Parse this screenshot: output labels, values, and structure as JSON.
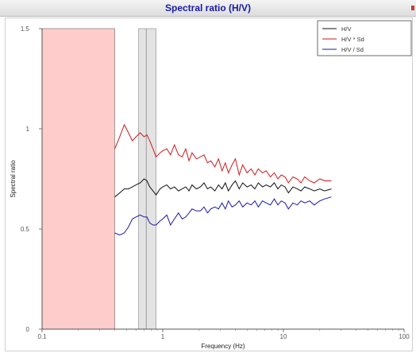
{
  "window": {
    "title": "Spectral ratio (H/V)"
  },
  "chart_data": {
    "type": "line",
    "title": "",
    "xlabel": "Frequency (Hz)",
    "ylabel": "Spectral ratio",
    "xscale": "log",
    "xlim": [
      0.1,
      100
    ],
    "ylim": [
      0,
      1.5
    ],
    "xticks": [
      {
        "value": 0.1,
        "label": "0.1"
      },
      {
        "value": 1,
        "label": "1"
      },
      {
        "value": 10,
        "label": "10"
      },
      {
        "value": 100,
        "label": "100"
      }
    ],
    "yticks": [
      {
        "value": 0,
        "label": "0"
      },
      {
        "value": 0.5,
        "label": "0.5"
      },
      {
        "value": 1,
        "label": "1"
      },
      {
        "value": 1.5,
        "label": "1.5"
      }
    ],
    "grid": false,
    "legend_position": "top-right",
    "shaded_regions": [
      {
        "x_from": 0.1,
        "x_to": 0.4,
        "color": "#ffcccc",
        "stroke": "#666666"
      },
      {
        "x_from": 0.63,
        "x_to": 0.88,
        "color": "#e3e3e3",
        "stroke": "#888888"
      }
    ],
    "marker_line": {
      "x": 0.73,
      "color": "#888888"
    },
    "series": [
      {
        "name": "H/V",
        "color": "#111111",
        "x": [
          0.4,
          0.44,
          0.48,
          0.52,
          0.56,
          0.6,
          0.65,
          0.7,
          0.74,
          0.78,
          0.83,
          0.88,
          0.95,
          1.0,
          1.08,
          1.16,
          1.25,
          1.35,
          1.45,
          1.55,
          1.65,
          1.75,
          1.9,
          2.05,
          2.2,
          2.35,
          2.5,
          2.7,
          2.9,
          3.1,
          3.3,
          3.5,
          3.75,
          4.0,
          4.3,
          4.6,
          5.0,
          5.4,
          5.8,
          6.2,
          6.7,
          7.2,
          7.8,
          8.4,
          9.0,
          9.6,
          10.3,
          11.0,
          12.0,
          13.0,
          14.0,
          15.0,
          16.5,
          18.0,
          20.0,
          22.0,
          25.0
        ],
        "y": [
          0.66,
          0.68,
          0.7,
          0.7,
          0.71,
          0.72,
          0.73,
          0.75,
          0.74,
          0.71,
          0.69,
          0.67,
          0.7,
          0.71,
          0.72,
          0.7,
          0.71,
          0.69,
          0.7,
          0.71,
          0.69,
          0.72,
          0.7,
          0.71,
          0.73,
          0.7,
          0.71,
          0.69,
          0.72,
          0.7,
          0.73,
          0.69,
          0.72,
          0.74,
          0.7,
          0.73,
          0.71,
          0.72,
          0.7,
          0.73,
          0.71,
          0.72,
          0.71,
          0.73,
          0.7,
          0.72,
          0.71,
          0.68,
          0.71,
          0.7,
          0.69,
          0.71,
          0.7,
          0.69,
          0.7,
          0.69,
          0.7
        ]
      },
      {
        "name": "H/V * Sd",
        "color": "#cc1a1a",
        "x": [
          0.4,
          0.44,
          0.48,
          0.52,
          0.56,
          0.6,
          0.65,
          0.7,
          0.74,
          0.78,
          0.83,
          0.88,
          0.95,
          1.0,
          1.08,
          1.16,
          1.25,
          1.35,
          1.45,
          1.55,
          1.65,
          1.75,
          1.9,
          2.05,
          2.2,
          2.35,
          2.5,
          2.7,
          2.9,
          3.1,
          3.3,
          3.5,
          3.75,
          4.0,
          4.3,
          4.6,
          5.0,
          5.4,
          5.8,
          6.2,
          6.7,
          7.2,
          7.8,
          8.4,
          9.0,
          9.6,
          10.3,
          11.0,
          12.0,
          13.0,
          14.0,
          15.0,
          16.5,
          18.0,
          20.0,
          22.0,
          25.0
        ],
        "y": [
          0.9,
          0.96,
          1.02,
          0.98,
          0.94,
          0.96,
          0.98,
          0.96,
          0.97,
          0.94,
          0.9,
          0.86,
          0.88,
          0.89,
          0.9,
          0.87,
          0.92,
          0.87,
          0.86,
          0.9,
          0.84,
          0.88,
          0.85,
          0.86,
          0.87,
          0.83,
          0.84,
          0.81,
          0.85,
          0.79,
          0.83,
          0.78,
          0.82,
          0.85,
          0.77,
          0.82,
          0.78,
          0.8,
          0.77,
          0.8,
          0.78,
          0.79,
          0.76,
          0.78,
          0.75,
          0.77,
          0.76,
          0.73,
          0.76,
          0.75,
          0.73,
          0.76,
          0.74,
          0.73,
          0.75,
          0.74,
          0.74
        ]
      },
      {
        "name": "H/V / Sd",
        "color": "#1a1aa6",
        "x": [
          0.4,
          0.44,
          0.48,
          0.52,
          0.56,
          0.6,
          0.65,
          0.7,
          0.74,
          0.78,
          0.83,
          0.88,
          0.95,
          1.0,
          1.08,
          1.16,
          1.25,
          1.35,
          1.45,
          1.55,
          1.65,
          1.75,
          1.9,
          2.05,
          2.2,
          2.35,
          2.5,
          2.7,
          2.9,
          3.1,
          3.3,
          3.5,
          3.75,
          4.0,
          4.3,
          4.6,
          5.0,
          5.4,
          5.8,
          6.2,
          6.7,
          7.2,
          7.8,
          8.4,
          9.0,
          9.6,
          10.3,
          11.0,
          12.0,
          13.0,
          14.0,
          15.0,
          16.5,
          18.0,
          20.0,
          22.0,
          25.0
        ],
        "y": [
          0.48,
          0.47,
          0.48,
          0.51,
          0.55,
          0.56,
          0.57,
          0.56,
          0.56,
          0.53,
          0.52,
          0.52,
          0.54,
          0.55,
          0.57,
          0.52,
          0.55,
          0.58,
          0.55,
          0.56,
          0.58,
          0.6,
          0.59,
          0.59,
          0.61,
          0.58,
          0.6,
          0.61,
          0.6,
          0.63,
          0.6,
          0.64,
          0.61,
          0.62,
          0.64,
          0.61,
          0.63,
          0.62,
          0.64,
          0.61,
          0.64,
          0.63,
          0.62,
          0.65,
          0.62,
          0.64,
          0.63,
          0.6,
          0.63,
          0.62,
          0.64,
          0.63,
          0.64,
          0.62,
          0.64,
          0.65,
          0.66
        ]
      }
    ]
  }
}
